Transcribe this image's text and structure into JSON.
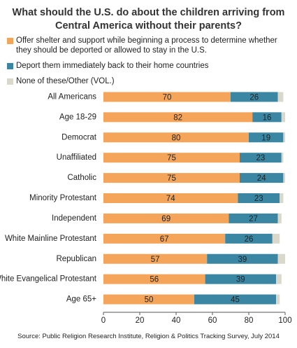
{
  "chart_data": {
    "type": "stacked-bar-horizontal",
    "title": "What should the U.S. do about the children arriving from Central America without their parents?",
    "source": "Source: Public Religion Research Institute, Religion & Politics Tracking Survey, July 2014",
    "categories": [
      "All Americans",
      "Age 18-29",
      "Democrat",
      "Unaffiliated",
      "Catholic",
      "Minority Protestant",
      "Independent",
      "White Mainline Protestant",
      "Republican",
      "White Evangelical Protestant",
      "Age 65+"
    ],
    "series": [
      {
        "name": "Offer shelter and support while beginning a process to determine whether they should be deported or allowed to stay in the U.S.",
        "color": "#f5a55a",
        "values": [
          70,
          82,
          80,
          75,
          75,
          74,
          69,
          67,
          57,
          56,
          50
        ]
      },
      {
        "name": "Deport them immediately back to their home countries",
        "color": "#3b87a3",
        "values": [
          26,
          16,
          19,
          23,
          24,
          23,
          27,
          26,
          39,
          39,
          45
        ]
      },
      {
        "name": "None of these/Other (VOL.)",
        "color": "#dad8cb",
        "values": [
          3,
          2,
          1,
          1,
          1,
          2,
          2,
          4,
          4,
          3,
          2
        ]
      }
    ],
    "labeled_series": [
      0,
      1
    ],
    "xlim": [
      0,
      100
    ],
    "xticks": [
      0,
      20,
      40,
      60,
      80,
      100
    ]
  }
}
